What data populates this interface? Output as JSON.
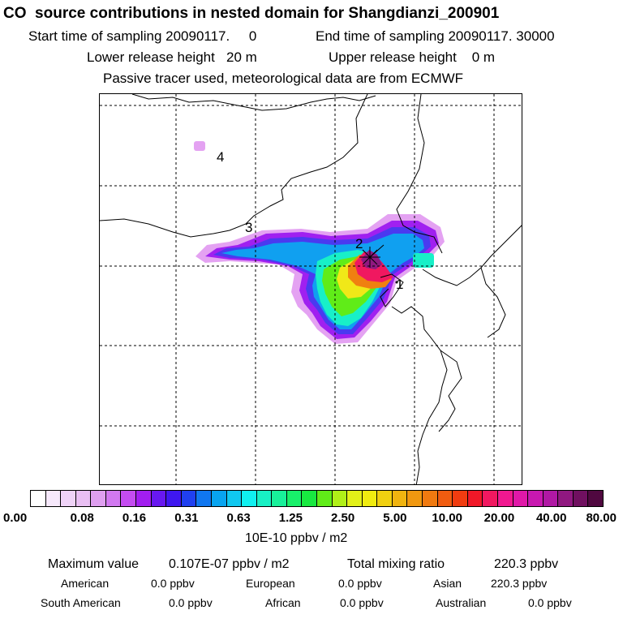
{
  "header": {
    "title": "CO  source contributions in nested domain for Shangdianzi_200901",
    "start_time": "Start time of sampling 20090117.     0",
    "end_time": "End time of sampling 20090117. 30000",
    "lower_height": "Lower release height   20 m",
    "upper_height": "Upper release height    0 m",
    "tracer_note": "Passive tracer used, meteorological data are from ECMWF"
  },
  "map": {
    "labels": [
      "1",
      "2",
      "3",
      "4"
    ]
  },
  "colorbar": {
    "ticks": [
      "0.00",
      "0.08",
      "0.16",
      "0.31",
      "0.63",
      "1.25",
      "2.50",
      "5.00",
      "10.00",
      "20.00",
      "40.00",
      "80.00"
    ],
    "unit": "10E-10 ppbv / m2",
    "colors": [
      "#ffffff",
      "#f6e8fb",
      "#efd3f7",
      "#e9bff3",
      "#df9ff0",
      "#d178f0",
      "#c44cf0",
      "#a21ef0",
      "#6818f0",
      "#3f17f0",
      "#2040f0",
      "#1077f0",
      "#08a4f0",
      "#10c8f0",
      "#10f0f0",
      "#18f0c4",
      "#18f09a",
      "#18f06a",
      "#18e840",
      "#60ec18",
      "#b0f018",
      "#e2f018",
      "#f0ec10",
      "#f0d010",
      "#f0b410",
      "#f09810",
      "#f07a10",
      "#f05c10",
      "#f03c10",
      "#f01828",
      "#f01860",
      "#f01890",
      "#e018a8",
      "#c818b0",
      "#b018a4",
      "#901880",
      "#701060",
      "#500840"
    ]
  },
  "stats": {
    "max_label": "Maximum value",
    "max_value": "0.107E-07 ppbv / m2",
    "total_label": "Total mixing ratio",
    "total_value": "220.3 ppbv",
    "regions": [
      {
        "name": "American",
        "value": "0.0 ppbv"
      },
      {
        "name": "European",
        "value": "0.0 ppbv"
      },
      {
        "name": "Asian",
        "value": "220.3 ppbv"
      },
      {
        "name": "South American",
        "value": "0.0 ppbv"
      },
      {
        "name": "African",
        "value": "0.0 ppbv"
      },
      {
        "name": "Australian",
        "value": "0.0 ppbv"
      }
    ]
  }
}
